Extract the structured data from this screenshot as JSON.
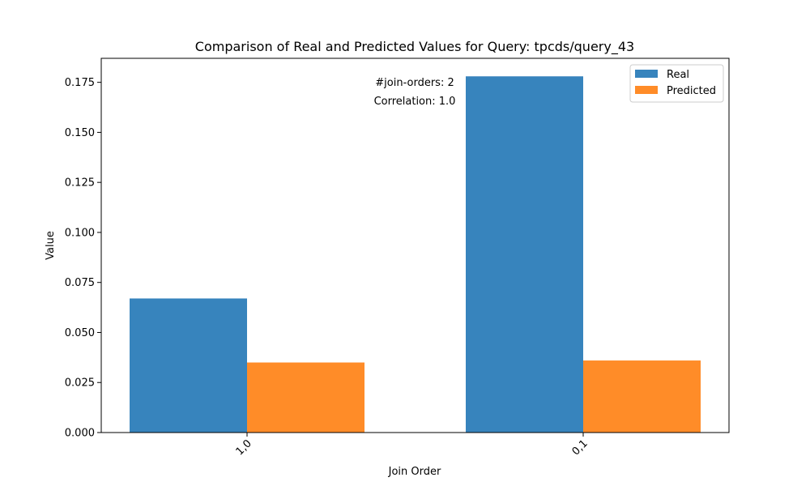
{
  "chart_data": {
    "type": "bar",
    "title": "Comparison of Real and Predicted Values for Query: tpcds/query_43",
    "xlabel": "Join Order",
    "ylabel": "Value",
    "categories": [
      "1,0",
      "0,1"
    ],
    "series": [
      {
        "name": "Real",
        "values": [
          0.067,
          0.178
        ],
        "color": "#3784bd"
      },
      {
        "name": "Predicted",
        "values": [
          0.035,
          0.036
        ],
        "color": "#ff8c28"
      }
    ],
    "ylim": [
      0,
      0.187
    ],
    "yticks": [
      0.0,
      0.025,
      0.05,
      0.075,
      0.1,
      0.125,
      0.15,
      0.175
    ],
    "ytick_labels": [
      "0.000",
      "0.025",
      "0.050",
      "0.075",
      "0.100",
      "0.125",
      "0.150",
      "0.175"
    ],
    "annotations": [
      "#join-orders: 2",
      "Correlation: 1.0"
    ],
    "legend_position": "top-right",
    "grid": false
  }
}
